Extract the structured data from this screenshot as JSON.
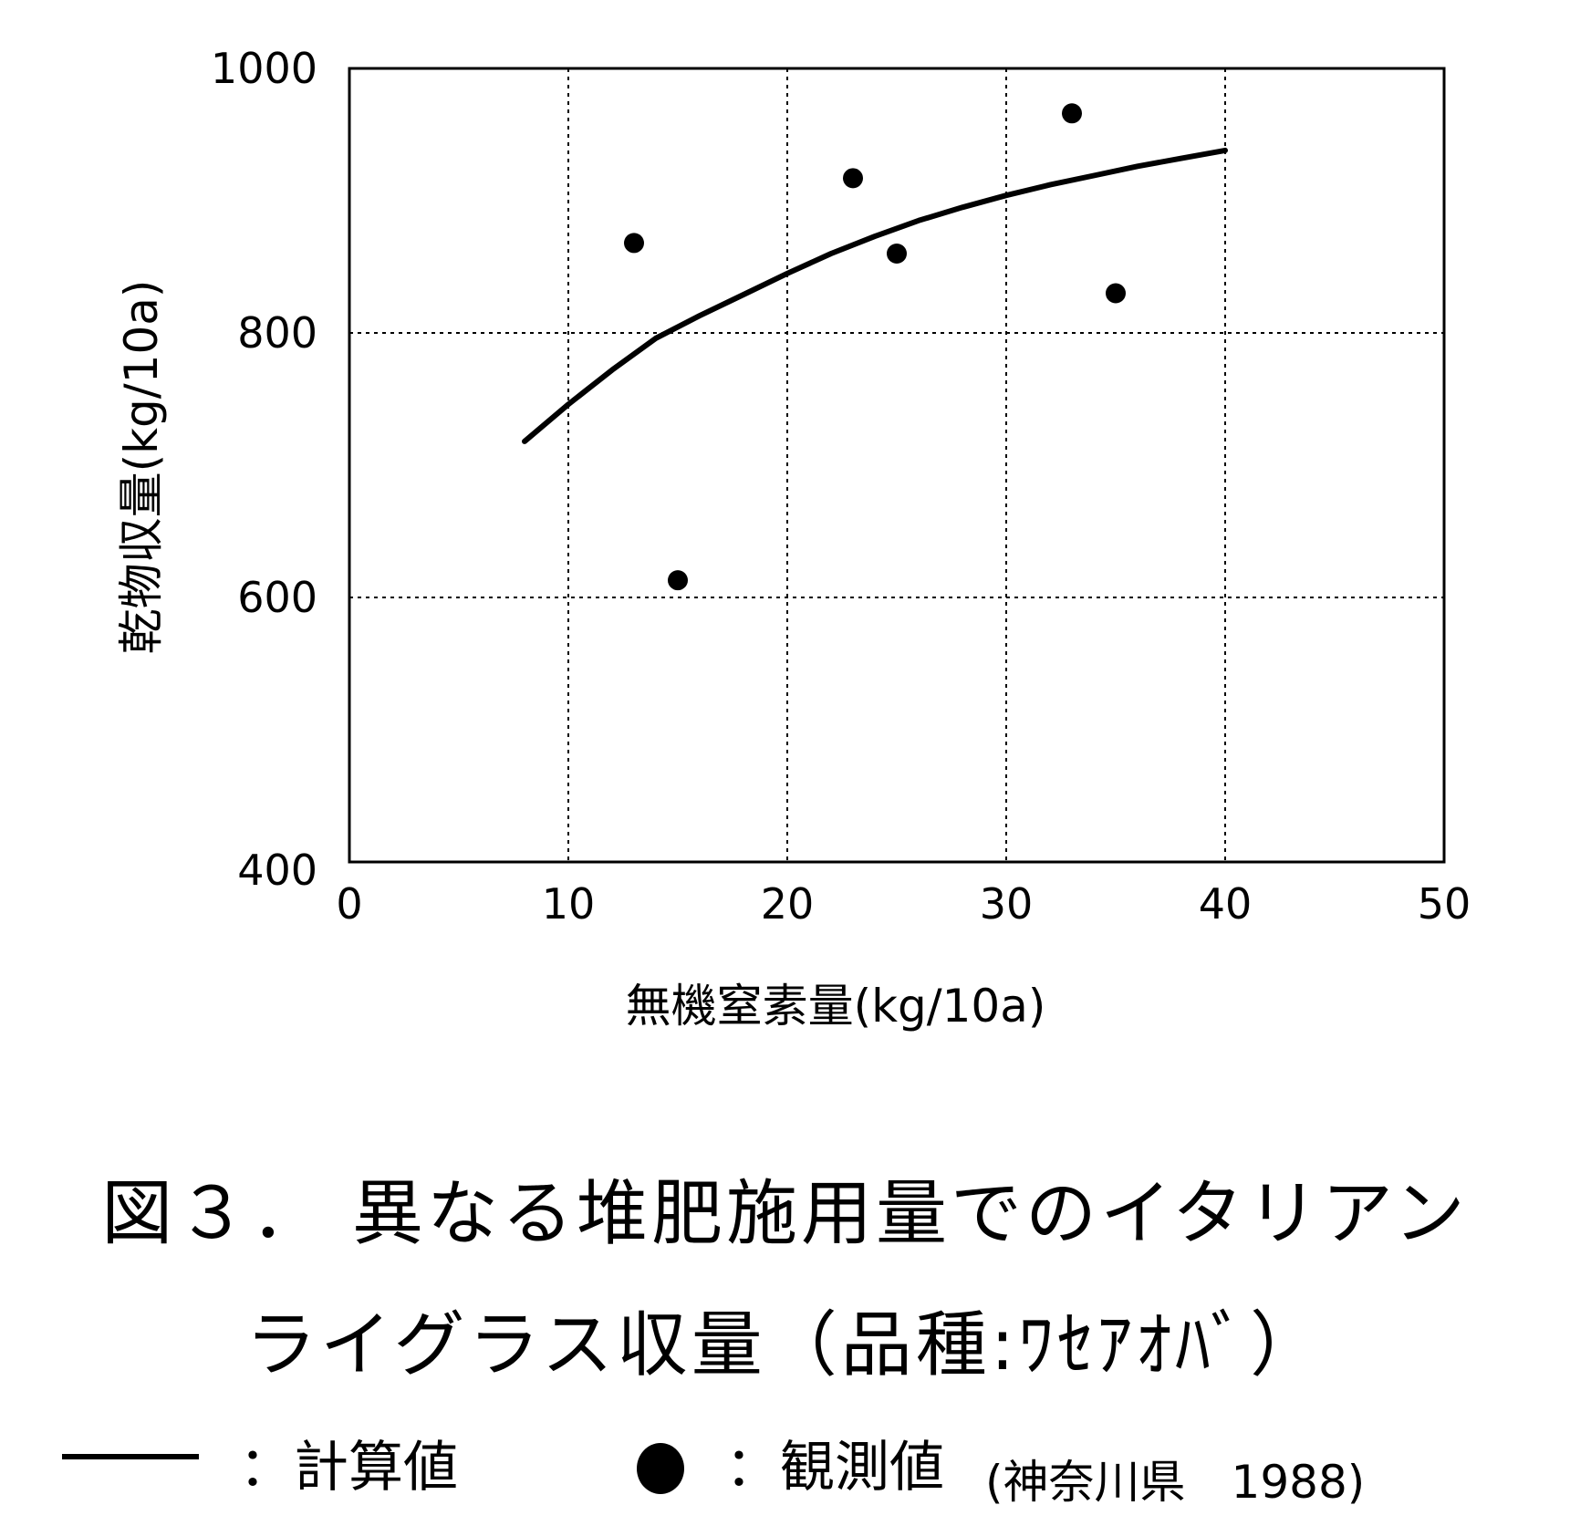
{
  "chart_data": {
    "type": "scatter",
    "xlabel": "無機窒素量(kg/10a)",
    "ylabel": "乾物収量(kg/10a)",
    "xlim": [
      0,
      50
    ],
    "ylim": [
      400,
      1000
    ],
    "xticks": [
      "0",
      "10",
      "20",
      "30",
      "40",
      "50"
    ],
    "yticks": [
      "400",
      "600",
      "800",
      "1000"
    ],
    "grid": true,
    "series": [
      {
        "name": "計算値",
        "kind": "line",
        "x": [
          8,
          10,
          12,
          14,
          16,
          18,
          20,
          22,
          24,
          26,
          28,
          30,
          32,
          34,
          36,
          38,
          40
        ],
        "y": [
          718,
          746,
          772,
          796,
          813,
          829,
          845,
          860,
          873,
          885,
          895,
          904,
          912,
          919,
          926,
          932,
          938
        ]
      },
      {
        "name": "観測値",
        "kind": "scatter",
        "x": [
          13,
          15,
          23,
          25,
          33,
          35
        ],
        "y": [
          868,
          613,
          917,
          860,
          966,
          830
        ]
      }
    ]
  },
  "caption": {
    "line1": "図３． 異なる堆肥施用量でのイタリアン",
    "line2": "ライグラス収量（品種:ﾜｾｱｵﾊﾞ）"
  },
  "legend": {
    "line_label": "：計算値",
    "dot_label": "：観測値",
    "source": "(神奈川県　1988)"
  }
}
